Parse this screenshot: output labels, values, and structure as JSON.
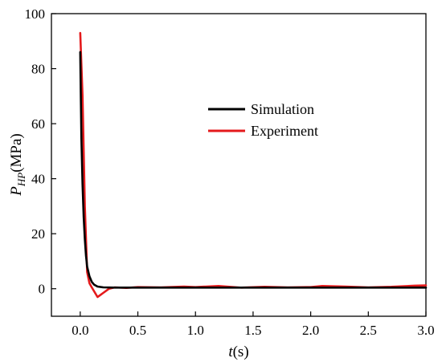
{
  "chart_data": {
    "type": "line",
    "xlabel": {
      "main": "t",
      "unit": "(s)"
    },
    "ylabel": {
      "main": "P",
      "sub": "HP",
      "unit": "(MPa)"
    },
    "xlim": [
      -0.25,
      3.0
    ],
    "ylim": [
      -10,
      100
    ],
    "xticks": [
      0.0,
      0.5,
      1.0,
      1.5,
      2.0,
      2.5,
      3.0
    ],
    "xtick_labels": [
      "0.0",
      "0.5",
      "1.0",
      "1.5",
      "2.0",
      "2.5",
      "3.0"
    ],
    "yticks": [
      0,
      20,
      40,
      60,
      80,
      100
    ],
    "ytick_labels": [
      "0",
      "20",
      "40",
      "60",
      "80",
      "100"
    ],
    "grid": false,
    "legend_position": "upper-middle-right",
    "series": [
      {
        "name": "Simulation",
        "color": "#000000",
        "x": [
          0.0,
          0.005,
          0.01,
          0.02,
          0.03,
          0.04,
          0.05,
          0.06,
          0.08,
          0.1,
          0.12,
          0.15,
          0.2,
          0.3,
          0.5,
          1.0,
          1.5,
          2.0,
          2.5,
          3.0
        ],
        "y": [
          86,
          70,
          55,
          38,
          26,
          18,
          12,
          8,
          4.5,
          2.5,
          1.5,
          0.8,
          0.5,
          0.4,
          0.4,
          0.4,
          0.4,
          0.4,
          0.4,
          0.4
        ]
      },
      {
        "name": "Experiment",
        "color": "#e41a1c",
        "x": [
          0.0,
          0.02,
          0.04,
          0.06,
          0.08,
          0.1,
          0.15,
          0.2,
          0.25,
          0.3,
          0.4,
          0.5,
          0.7,
          0.9,
          1.0,
          1.2,
          1.4,
          1.6,
          1.8,
          2.0,
          2.1,
          2.3,
          2.5,
          2.7,
          2.9,
          3.0
        ],
        "y": [
          93,
          70,
          30,
          6,
          2,
          0.5,
          -3,
          -1.5,
          0,
          0.5,
          0.3,
          0.6,
          0.5,
          0.8,
          0.6,
          1.0,
          0.4,
          0.7,
          0.5,
          0.6,
          1.0,
          0.8,
          0.5,
          0.7,
          1.1,
          1.2
        ]
      }
    ]
  }
}
